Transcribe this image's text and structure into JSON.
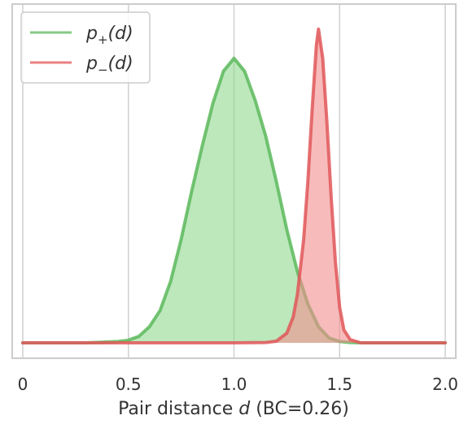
{
  "chart_data": {
    "type": "area",
    "xlabel": "Pair distance d (BC=0.26)",
    "xlabel_parts": {
      "prefix": "Pair distance ",
      "var": "d",
      "suffix": " (BC=0.26)"
    },
    "xlim": [
      -0.05,
      2.05
    ],
    "ylim": [
      0,
      1
    ],
    "xticks": [
      0,
      0.5,
      1.0,
      1.5,
      2.0
    ],
    "xtick_labels": [
      "0",
      "0.5",
      "1.0",
      "1.5",
      "2.0"
    ],
    "yticks_visible": false,
    "grid": "vertical",
    "legend_position": "top-left",
    "series": [
      {
        "name": "p+(d)",
        "legend": {
          "base": "p",
          "sub": "+",
          "arg": "(d)"
        },
        "color": "#5cb85c",
        "fill": "#90d890",
        "x": [
          0,
          0.3,
          0.45,
          0.5,
          0.55,
          0.6,
          0.65,
          0.7,
          0.75,
          0.8,
          0.85,
          0.9,
          0.95,
          1.0,
          1.05,
          1.1,
          1.15,
          1.2,
          1.25,
          1.3,
          1.35,
          1.4,
          1.45,
          1.5,
          1.55,
          1.6,
          2.0
        ],
        "y": [
          0,
          0,
          0.004,
          0.008,
          0.02,
          0.05,
          0.1,
          0.19,
          0.32,
          0.47,
          0.61,
          0.74,
          0.84,
          0.88,
          0.84,
          0.75,
          0.64,
          0.5,
          0.35,
          0.22,
          0.12,
          0.05,
          0.015,
          0.004,
          0.001,
          0,
          0
        ]
      },
      {
        "name": "p-(d)",
        "legend": {
          "base": "p",
          "sub": "−",
          "arg": "(d)"
        },
        "color": "#e15759",
        "fill": "#f28e8e",
        "x": [
          0,
          1.0,
          1.15,
          1.2,
          1.25,
          1.28,
          1.3,
          1.33,
          1.35,
          1.37,
          1.39,
          1.4,
          1.42,
          1.44,
          1.46,
          1.48,
          1.5,
          1.52,
          1.55,
          1.6,
          2.0
        ],
        "y": [
          0,
          0,
          0.001,
          0.005,
          0.03,
          0.08,
          0.15,
          0.32,
          0.5,
          0.72,
          0.92,
          0.97,
          0.88,
          0.68,
          0.45,
          0.25,
          0.11,
          0.04,
          0.01,
          0,
          0
        ]
      }
    ]
  }
}
